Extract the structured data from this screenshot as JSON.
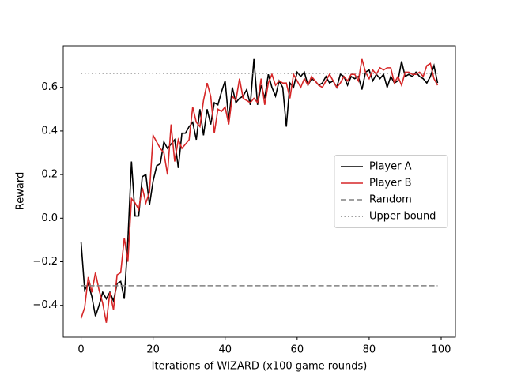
{
  "chart_data": {
    "type": "line",
    "xlabel": "Iterations of WIZARD (x100 game rounds)",
    "ylabel": "Reward",
    "x": [
      0,
      1,
      2,
      3,
      4,
      5,
      6,
      7,
      8,
      9,
      10,
      11,
      12,
      13,
      14,
      15,
      16,
      17,
      18,
      19,
      20,
      21,
      22,
      23,
      24,
      25,
      26,
      27,
      28,
      29,
      30,
      31,
      32,
      33,
      34,
      35,
      36,
      37,
      38,
      39,
      40,
      41,
      42,
      43,
      44,
      45,
      46,
      47,
      48,
      49,
      50,
      51,
      52,
      53,
      54,
      55,
      56,
      57,
      58,
      59,
      60,
      61,
      62,
      63,
      64,
      65,
      66,
      67,
      68,
      69,
      70,
      71,
      72,
      73,
      74,
      75,
      76,
      77,
      78,
      79,
      80,
      81,
      82,
      83,
      84,
      85,
      86,
      87,
      88,
      89,
      90,
      91,
      92,
      93,
      94,
      95,
      96,
      97,
      98,
      99
    ],
    "series": [
      {
        "name": "Player A",
        "color": "#000000",
        "dash": "solid",
        "values": [
          -0.11,
          -0.33,
          -0.3,
          -0.36,
          -0.45,
          -0.4,
          -0.34,
          -0.37,
          -0.34,
          -0.38,
          -0.3,
          -0.29,
          -0.37,
          -0.1,
          0.26,
          0.01,
          0.01,
          0.19,
          0.2,
          0.06,
          0.17,
          0.24,
          0.25,
          0.35,
          0.32,
          0.34,
          0.36,
          0.23,
          0.39,
          0.39,
          0.42,
          0.44,
          0.36,
          0.5,
          0.38,
          0.5,
          0.43,
          0.53,
          0.52,
          0.58,
          0.63,
          0.45,
          0.6,
          0.53,
          0.55,
          0.56,
          0.59,
          0.52,
          0.73,
          0.52,
          0.61,
          0.55,
          0.66,
          0.6,
          0.56,
          0.63,
          0.6,
          0.42,
          0.62,
          0.6,
          0.67,
          0.65,
          0.67,
          0.61,
          0.64,
          0.63,
          0.61,
          0.62,
          0.65,
          0.62,
          0.63,
          0.6,
          0.66,
          0.65,
          0.61,
          0.65,
          0.64,
          0.65,
          0.59,
          0.67,
          0.68,
          0.63,
          0.66,
          0.64,
          0.66,
          0.6,
          0.65,
          0.62,
          0.63,
          0.72,
          0.65,
          0.66,
          0.65,
          0.67,
          0.65,
          0.64,
          0.62,
          0.65,
          0.7,
          0.62
        ]
      },
      {
        "name": "Player B",
        "color": "#d62728",
        "dash": "solid",
        "values": [
          -0.46,
          -0.41,
          -0.27,
          -0.34,
          -0.25,
          -0.33,
          -0.39,
          -0.48,
          -0.34,
          -0.42,
          -0.26,
          -0.25,
          -0.09,
          -0.2,
          0.09,
          0.07,
          0.04,
          0.14,
          0.07,
          0.12,
          0.38,
          0.35,
          0.32,
          0.3,
          0.2,
          0.43,
          0.26,
          0.36,
          0.32,
          0.34,
          0.36,
          0.51,
          0.44,
          0.42,
          0.54,
          0.62,
          0.56,
          0.39,
          0.5,
          0.49,
          0.51,
          0.43,
          0.56,
          0.54,
          0.64,
          0.55,
          0.54,
          0.53,
          0.55,
          0.53,
          0.64,
          0.52,
          0.62,
          0.66,
          0.61,
          0.63,
          0.62,
          0.62,
          0.55,
          0.66,
          0.63,
          0.6,
          0.64,
          0.61,
          0.65,
          0.63,
          0.61,
          0.6,
          0.63,
          0.66,
          0.63,
          0.6,
          0.62,
          0.65,
          0.63,
          0.66,
          0.66,
          0.63,
          0.73,
          0.67,
          0.64,
          0.68,
          0.66,
          0.69,
          0.68,
          0.69,
          0.69,
          0.62,
          0.65,
          0.61,
          0.67,
          0.67,
          0.66,
          0.66,
          0.67,
          0.65,
          0.7,
          0.71,
          0.64,
          0.61
        ]
      },
      {
        "name": "Random",
        "color": "#808080",
        "dash": "dashed",
        "x": [
          0,
          99
        ],
        "values": [
          -0.31,
          -0.31
        ]
      },
      {
        "name": "Upper bound",
        "color": "#808080",
        "dash": "dotted",
        "x": [
          0,
          99
        ],
        "values": [
          0.665,
          0.665
        ]
      }
    ],
    "xlim": [
      -4.95,
      103.95
    ],
    "ylim": [
      -0.546,
      0.791
    ],
    "xticks": [
      0,
      20,
      40,
      60,
      80,
      100
    ],
    "yticks": [
      {
        "value": -0.4,
        "label": "−0.4"
      },
      {
        "value": -0.2,
        "label": "−0.2"
      },
      {
        "value": 0,
        "label": "0.0"
      },
      0.2,
      0.4,
      0.6
    ],
    "legend": "center right"
  }
}
